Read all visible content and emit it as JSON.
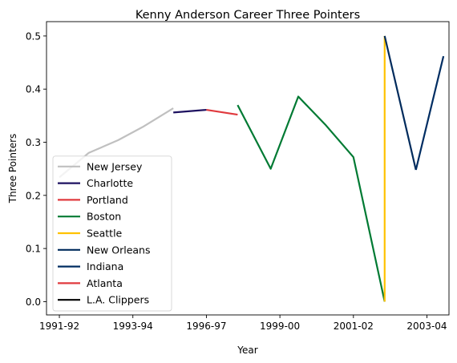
{
  "chart_data": {
    "type": "line",
    "title": "Kenny Anderson  Career Three Pointers",
    "xlabel": "Year",
    "ylabel": "Three Pointers",
    "xlim": [
      -0.35,
      10.6
    ],
    "ylim": [
      -0.025,
      0.527
    ],
    "x_ticks": [
      {
        "pos": 0,
        "label": "1991-92"
      },
      {
        "pos": 2,
        "label": "1993-94"
      },
      {
        "pos": 4,
        "label": "1996-97"
      },
      {
        "pos": 6,
        "label": "1999-00"
      },
      {
        "pos": 8,
        "label": "2001-02"
      },
      {
        "pos": 10,
        "label": "2003-04"
      }
    ],
    "y_ticks": [
      0.0,
      0.1,
      0.2,
      0.3,
      0.4,
      0.5
    ],
    "y_tick_labels": [
      "0.0",
      "0.1",
      "0.2",
      "0.3",
      "0.4",
      "0.5"
    ],
    "grid": false,
    "legend_position": "lower-left",
    "series": [
      {
        "name": "New Jersey",
        "color": "#c0c0c0",
        "x": [
          0,
          0.8,
          1.6,
          2.3,
          3.1
        ],
        "y": [
          0.234,
          0.28,
          0.304,
          0.33,
          0.364
        ]
      },
      {
        "name": "Charlotte",
        "color": "#1d1160",
        "x": [
          3.1,
          4.0
        ],
        "y": [
          0.356,
          0.361
        ]
      },
      {
        "name": "Portland",
        "color": "#e03a3e",
        "x": [
          4.0,
          4.85
        ],
        "y": [
          0.361,
          0.352
        ]
      },
      {
        "name": "Boston",
        "color": "#007a33",
        "x": [
          4.85,
          5.75,
          6.5,
          7.25,
          8.0,
          8.85
        ],
        "y": [
          0.37,
          0.25,
          0.386,
          0.332,
          0.272,
          0.0
        ]
      },
      {
        "name": "Seattle",
        "color": "#ffc200",
        "x": [
          8.85,
          8.85
        ],
        "y": [
          0.0,
          0.5
        ]
      },
      {
        "name": "New Orleans",
        "color": "#002b5c",
        "x": [
          8.85,
          9.7
        ],
        "y": [
          0.5,
          0.248
        ]
      },
      {
        "name": "Indiana",
        "color": "#002d62",
        "x": [
          9.7,
          10.45
        ],
        "y": [
          0.248,
          0.462
        ]
      },
      {
        "name": "Atlanta",
        "color": "#e03a3e",
        "x": [],
        "y": []
      },
      {
        "name": "L.A. Clippers",
        "color": "#000000",
        "x": [],
        "y": []
      }
    ]
  }
}
